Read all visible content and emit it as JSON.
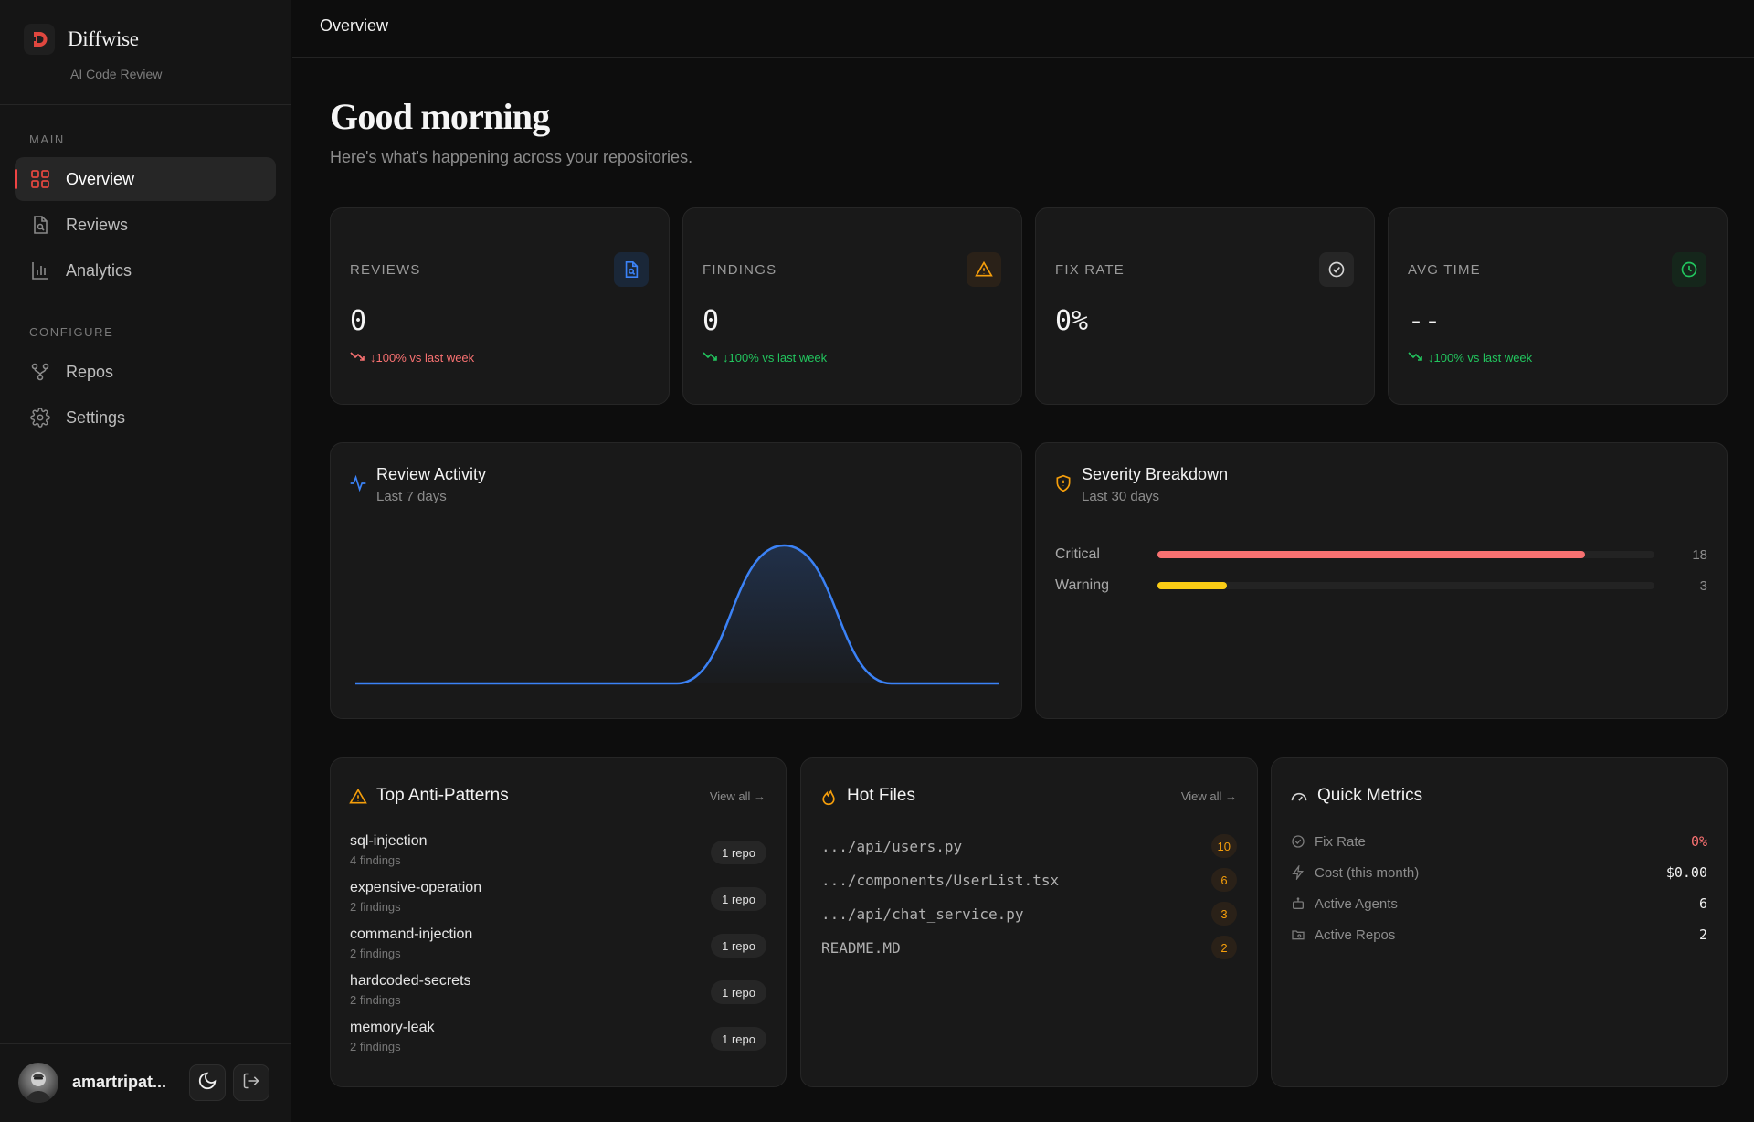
{
  "brand": {
    "name": "Diffwise",
    "subtitle": "AI Code Review"
  },
  "nav": {
    "main_label": "MAIN",
    "configure_label": "CONFIGURE",
    "items": [
      {
        "label": "Overview",
        "icon": "grid-icon",
        "active": true
      },
      {
        "label": "Reviews",
        "icon": "document-search-icon"
      },
      {
        "label": "Analytics",
        "icon": "bar-chart-icon"
      },
      {
        "label": "Repos",
        "icon": "git-branch-icon"
      },
      {
        "label": "Settings",
        "icon": "gear-icon"
      }
    ]
  },
  "user": {
    "name": "amartripat..."
  },
  "topbar": {
    "title": "Overview"
  },
  "greeting": {
    "title": "Good morning",
    "subtitle": "Here's what's happening across your repositories."
  },
  "stats": [
    {
      "label": "REVIEWS",
      "value": "0",
      "change": "↓100% vs last week",
      "change_color": "#f87171",
      "icon": "document-search-icon",
      "icon_color": "#3b82f6"
    },
    {
      "label": "FINDINGS",
      "value": "0",
      "change": "↓100% vs last week",
      "change_color": "#22c55e",
      "icon": "warning-icon",
      "icon_color": "#f59e0b"
    },
    {
      "label": "FIX RATE",
      "value": "0%",
      "change": "",
      "icon": "check-circle-icon",
      "icon_color": "#d4d4d4"
    },
    {
      "label": "AVG TIME",
      "value": "--",
      "change": "↓100% vs last week",
      "change_color": "#22c55e",
      "icon": "clock-icon",
      "icon_color": "#22c55e"
    }
  ],
  "activity": {
    "title": "Review Activity",
    "subtitle": "Last 7 days",
    "icon": "activity-icon"
  },
  "chart_data": {
    "type": "area",
    "x": [
      0,
      1,
      2,
      3,
      4,
      5,
      6
    ],
    "values": [
      0,
      0,
      0,
      0,
      1,
      0,
      0
    ],
    "ylim": [
      0,
      1
    ],
    "title": "Review Activity",
    "xlabel": "",
    "ylabel": "",
    "grid": false,
    "color": "#3b82f6"
  },
  "severity": {
    "title": "Severity Breakdown",
    "subtitle": "Last 30 days",
    "icon": "shield-icon",
    "rows": [
      {
        "label": "Critical",
        "count": "18",
        "fraction": 0.86,
        "color": "#f87171"
      },
      {
        "label": "Warning",
        "count": "3",
        "fraction": 0.14,
        "color": "#facc15"
      }
    ]
  },
  "anti_patterns": {
    "title": "Top Anti-Patterns",
    "view_all": "View all →",
    "icon": "warning-icon",
    "items": [
      {
        "name": "sql-injection",
        "count": "4 findings",
        "repos": "1 repo"
      },
      {
        "name": "expensive-operation",
        "count": "2 findings",
        "repos": "1 repo"
      },
      {
        "name": "command-injection",
        "count": "2 findings",
        "repos": "1 repo"
      },
      {
        "name": "hardcoded-secrets",
        "count": "2 findings",
        "repos": "1 repo"
      },
      {
        "name": "memory-leak",
        "count": "2 findings",
        "repos": "1 repo"
      }
    ]
  },
  "hot_files": {
    "title": "Hot Files",
    "view_all": "View all →",
    "icon": "flame-icon",
    "items": [
      {
        "path": ".../api/users.py",
        "count": "10"
      },
      {
        "path": ".../components/UserList.tsx",
        "count": "6"
      },
      {
        "path": ".../api/chat_service.py",
        "count": "3"
      },
      {
        "path": "README.MD",
        "count": "2"
      }
    ]
  },
  "quick_metrics": {
    "title": "Quick Metrics",
    "icon": "gauge-icon",
    "items": [
      {
        "label": "Fix Rate",
        "value": "0%",
        "icon": "check-circle-icon",
        "color": "#f87171"
      },
      {
        "label": "Cost (this month)",
        "value": "$0.00",
        "icon": "lightning-icon",
        "color": "#f0f0f0"
      },
      {
        "label": "Active Agents",
        "value": "6",
        "icon": "robot-icon",
        "color": "#f0f0f0"
      },
      {
        "label": "Active Repos",
        "value": "2",
        "icon": "folder-git-icon",
        "color": "#f0f0f0"
      }
    ]
  }
}
